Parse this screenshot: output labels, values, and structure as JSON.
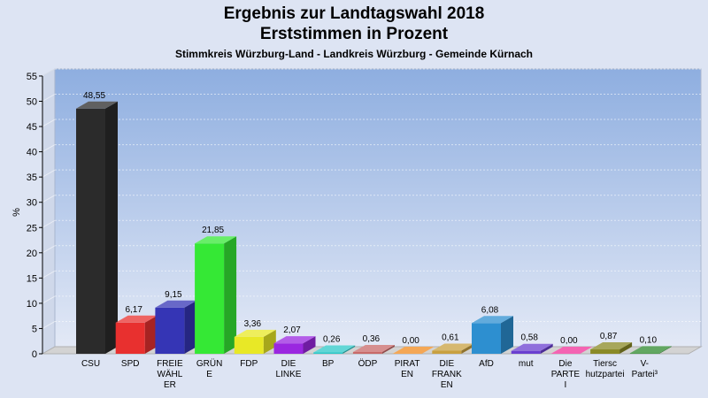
{
  "title": "Ergebnis zur Landtagswahl 2018",
  "subtitle": "Erststimmen in Prozent",
  "subsubtitle": "Stimmkreis Würzburg-Land - Landkreis Würzburg - Gemeinde Kürnach",
  "chart_data": {
    "type": "bar",
    "title": "Ergebnis zur Landtagswahl 2018",
    "ylabel": "%",
    "ylim": [
      0,
      55
    ],
    "yticks": [
      0,
      5,
      10,
      15,
      20,
      25,
      30,
      35,
      40,
      45,
      50,
      55
    ],
    "categories": [
      {
        "lines": [
          "CSU"
        ]
      },
      {
        "lines": [
          "SPD"
        ]
      },
      {
        "lines": [
          "FREIE",
          "WÄHL",
          "ER"
        ]
      },
      {
        "lines": [
          "GRÜN",
          "E"
        ]
      },
      {
        "lines": [
          "FDP"
        ]
      },
      {
        "lines": [
          "DIE",
          "LINKE"
        ]
      },
      {
        "lines": [
          "BP"
        ]
      },
      {
        "lines": [
          "ÖDP"
        ]
      },
      {
        "lines": [
          "PIRAT",
          "EN"
        ]
      },
      {
        "lines": [
          "DIE",
          "FRANK",
          "EN"
        ]
      },
      {
        "lines": [
          "AfD"
        ]
      },
      {
        "lines": [
          "mut"
        ]
      },
      {
        "lines": [
          "Die",
          "PARTE",
          "I"
        ]
      },
      {
        "lines": [
          "Tiersc",
          "hutzpartei"
        ]
      },
      {
        "lines": [
          "V-",
          "Partei³"
        ]
      }
    ],
    "values": [
      48.55,
      6.17,
      9.15,
      21.85,
      3.36,
      2.07,
      0.26,
      0.36,
      0.0,
      0.61,
      6.08,
      0.58,
      0.0,
      0.87,
      0.1
    ],
    "value_labels": [
      "48,55",
      "6,17",
      "9,15",
      "21,85",
      "3,36",
      "2,07",
      "0,26",
      "0,36",
      "0,00",
      "0,61",
      "6,08",
      "0,58",
      "0,00",
      "0,87",
      "0,10"
    ],
    "colors": [
      "#2b2b2b",
      "#e8302f",
      "#3535b5",
      "#35e835",
      "#e8e826",
      "#9a27e0",
      "#2ec8c8",
      "#c86a6a",
      "#f08a1e",
      "#c8a040",
      "#2d8fd0",
      "#6a3fd0",
      "#f0309a",
      "#8a8a26",
      "#2d8a2d"
    ],
    "grid": true
  }
}
